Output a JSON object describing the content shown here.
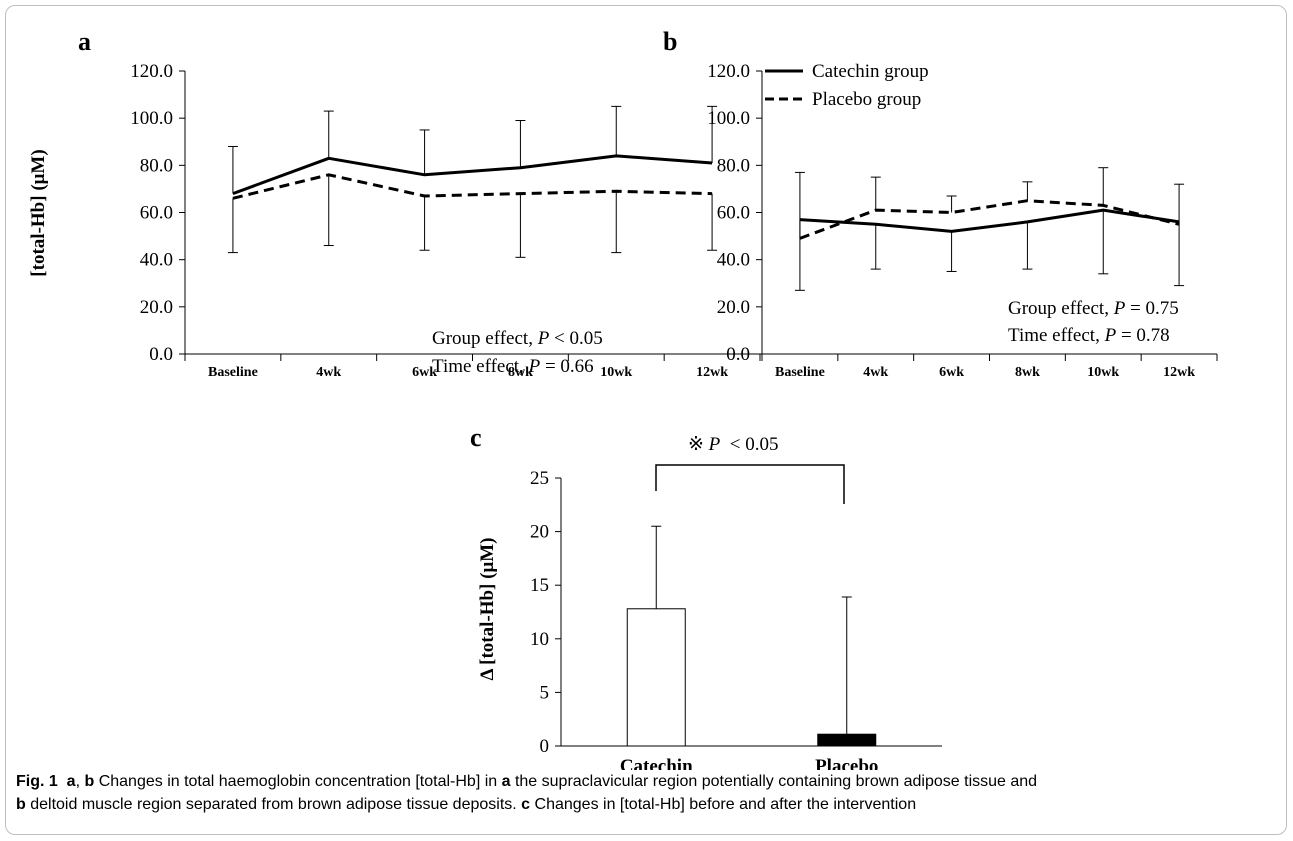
{
  "chart_data": [
    {
      "panel": "a",
      "type": "line",
      "categories": [
        "Baseline",
        "4wk",
        "6wk",
        "8wk",
        "10wk",
        "12wk"
      ],
      "ylabel": "[total-Hb] (μM)",
      "ylim": [
        0,
        120
      ],
      "yticks": [
        "0.0",
        "20.0",
        "40.0",
        "60.0",
        "80.0",
        "100.0",
        "120.0"
      ],
      "series": [
        {
          "legend_key": "catechin",
          "style": "solid",
          "values": [
            68,
            83,
            76,
            79,
            84,
            81
          ],
          "error_upper": [
            88,
            103,
            95,
            99,
            105,
            105
          ]
        },
        {
          "legend_key": "placebo",
          "style": "dashed",
          "values": [
            66,
            76,
            67,
            68,
            69,
            68
          ],
          "error_lower": [
            43,
            46,
            44,
            41,
            43,
            44
          ]
        }
      ],
      "annotations": [
        {
          "prefix": "Group effect, ",
          "stat": "P",
          "suffix": " < 0.05"
        },
        {
          "prefix": "Time effect, ",
          "stat": "P",
          "suffix": " = 0.66"
        }
      ]
    },
    {
      "panel": "b",
      "type": "line",
      "categories": [
        "Baseline",
        "4wk",
        "6wk",
        "8wk",
        "10wk",
        "12wk"
      ],
      "ylim": [
        0,
        120
      ],
      "yticks": [
        "0.0",
        "20.0",
        "40.0",
        "60.0",
        "80.0",
        "100.0",
        "120.0"
      ],
      "series": [
        {
          "legend_key": "catechin",
          "style": "solid",
          "values": [
            57,
            55,
            52,
            56,
            61,
            56
          ],
          "error_lower": [
            27,
            36,
            35,
            36,
            34,
            29
          ]
        },
        {
          "legend_key": "placebo",
          "style": "dashed",
          "values": [
            49,
            61,
            60,
            65,
            63,
            55
          ],
          "error_upper": [
            77,
            75,
            67,
            73,
            79,
            72
          ]
        }
      ],
      "annotations": [
        {
          "prefix": "Group effect, ",
          "stat": "P",
          "suffix": " = 0.75"
        },
        {
          "prefix": "Time effect, ",
          "stat": "P",
          "suffix": " = 0.78"
        }
      ]
    },
    {
      "panel": "c",
      "type": "bar",
      "categories": [
        "Catechin",
        "Placebo"
      ],
      "values": [
        12.8,
        1.1
      ],
      "error_upper": [
        20.5,
        13.9
      ],
      "bar_colors": [
        "#ffffff",
        "#000000"
      ],
      "ylabel": "Δ [total-Hb] (μM)",
      "ylim": [
        0,
        25
      ],
      "yticks": [
        "0",
        "5",
        "10",
        "15",
        "20",
        "25"
      ],
      "significance": {
        "mark": "※",
        "stat": "P",
        "suffix": "  < 0.05"
      }
    }
  ],
  "legend": {
    "catechin": "Catechin group",
    "placebo": "Placebo group"
  },
  "panel_labels": {
    "a": "a",
    "b": "b",
    "c": "c"
  },
  "caption": {
    "fig": "Fig. 1",
    "a": "a",
    "sep": ", ",
    "b": "b",
    "t1": " Changes in total haemoglobin concentration [total-Hb] in ",
    "a2": "a",
    "t2": " the supraclavicular region potentially containing brown adipose tissue and ",
    "b2": "b",
    "t3": " deltoid muscle region separated from brown adipose tissue deposits. ",
    "c": "c",
    "t4": " Changes in [total-Hb] before and after the intervention"
  }
}
